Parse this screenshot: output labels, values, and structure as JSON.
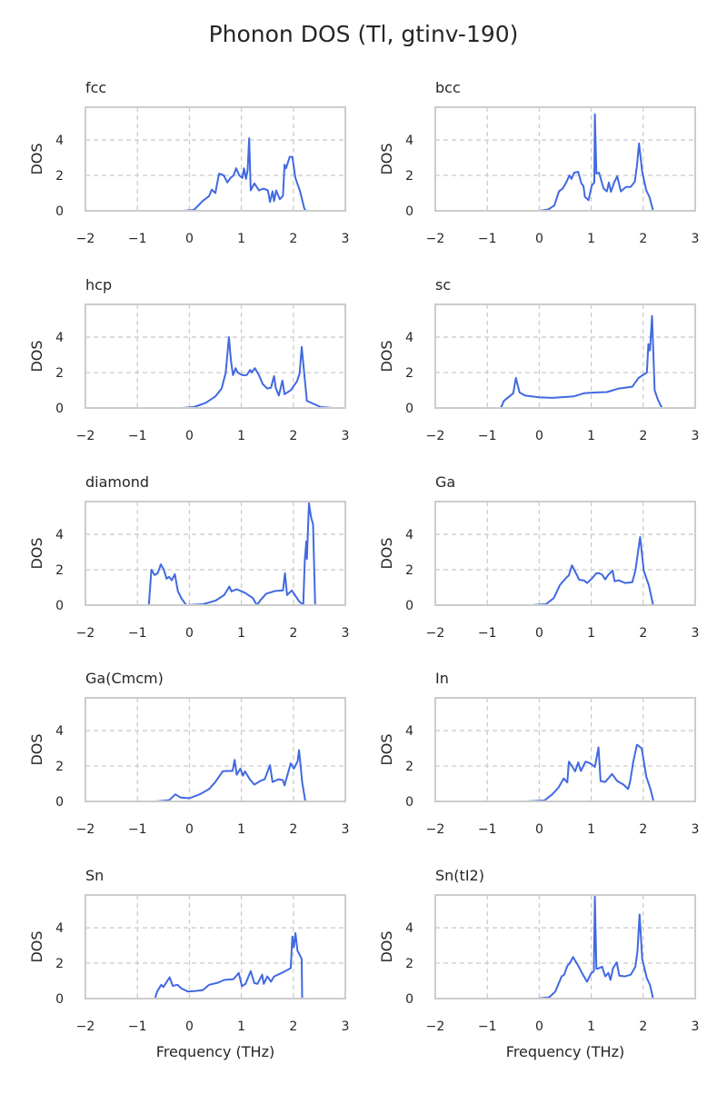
{
  "title": "Phonon DOS (Tl, gtinv-190)",
  "chart_data": {
    "type": "line",
    "title": "Phonon DOS (Tl, gtinv-190)",
    "xlabel": "Frequency (THz)",
    "ylabel": "DOS",
    "xlim": [
      -2,
      3
    ],
    "ylim": [
      0,
      5.85
    ],
    "xticks": [
      -2,
      -1,
      0,
      1,
      2,
      3
    ],
    "xtick_labels": [
      "−2",
      "−1",
      "0",
      "1",
      "2",
      "3"
    ],
    "yticks": [
      0,
      2,
      4
    ],
    "ytick_labels": [
      "0",
      "2",
      "4"
    ],
    "grid": true,
    "grid_style": "dashed",
    "line_color": "#4169e1",
    "grid_color": "#cccccc",
    "panels": [
      {
        "title": "fcc",
        "x": [
          -0.12,
          0.09,
          0.26,
          0.38,
          0.43,
          0.5,
          0.57,
          0.66,
          0.73,
          0.79,
          0.85,
          0.9,
          0.96,
          1.02,
          1.05,
          1.09,
          1.12,
          1.15,
          1.18,
          1.25,
          1.34,
          1.43,
          1.51,
          1.55,
          1.6,
          1.63,
          1.67,
          1.74,
          1.8,
          1.83,
          1.86,
          1.93,
          1.98,
          2.04,
          2.13,
          2.21,
          2.24,
          2.42
        ],
        "y": [
          0,
          0.05,
          0.57,
          0.83,
          1.2,
          1.0,
          2.1,
          2.0,
          1.6,
          1.85,
          2.0,
          2.4,
          2.0,
          1.85,
          2.4,
          1.8,
          2.3,
          4.1,
          1.15,
          1.55,
          1.15,
          1.25,
          1.15,
          0.5,
          1.1,
          0.55,
          1.15,
          0.65,
          0.85,
          2.6,
          2.4,
          3.05,
          3.05,
          1.85,
          1.1,
          0.15,
          0,
          0
        ]
      },
      {
        "title": "bcc",
        "x": [
          0,
          0.17,
          0.29,
          0.38,
          0.45,
          0.52,
          0.58,
          0.62,
          0.67,
          0.75,
          0.81,
          0.85,
          0.88,
          0.95,
          1.01,
          1.06,
          1.07,
          1.1,
          1.15,
          1.24,
          1.3,
          1.34,
          1.38,
          1.44,
          1.5,
          1.57,
          1.67,
          1.76,
          1.84,
          1.88,
          1.92,
          1.98,
          2.06,
          2.12,
          2.19,
          2.37
        ],
        "y": [
          0,
          0.07,
          0.3,
          1.1,
          1.25,
          1.6,
          2.0,
          1.8,
          2.15,
          2.2,
          1.55,
          1.4,
          0.78,
          0.6,
          1.43,
          1.6,
          5.45,
          2.1,
          2.15,
          1.25,
          1.1,
          1.6,
          1.07,
          1.6,
          1.95,
          1.1,
          1.35,
          1.35,
          1.65,
          2.55,
          3.8,
          2.2,
          1.15,
          0.78,
          0,
          0
        ]
      },
      {
        "title": "hcp",
        "x": [
          -0.15,
          0.09,
          0.32,
          0.5,
          0.62,
          0.7,
          0.76,
          0.8,
          0.84,
          0.89,
          0.93,
          1.02,
          1.1,
          1.17,
          1.2,
          1.26,
          1.34,
          1.41,
          1.5,
          1.57,
          1.63,
          1.66,
          1.72,
          1.79,
          1.83,
          1.95,
          2.07,
          2.12,
          2.16,
          2.26,
          2.53,
          2.77
        ],
        "y": [
          0,
          0.05,
          0.3,
          0.65,
          1.1,
          2.0,
          4.0,
          2.65,
          1.85,
          2.25,
          2.0,
          1.85,
          1.85,
          2.15,
          2.0,
          2.25,
          1.85,
          1.35,
          1.1,
          1.15,
          1.8,
          1.15,
          0.7,
          1.55,
          0.78,
          1.0,
          1.5,
          1.95,
          3.45,
          0.4,
          0.05,
          0
        ]
      },
      {
        "title": "sc",
        "x": [
          -1.03,
          -0.74,
          -0.68,
          -0.5,
          -0.45,
          -0.38,
          -0.27,
          0,
          0.25,
          0.66,
          0.86,
          1.1,
          1.3,
          1.53,
          1.79,
          1.91,
          2.07,
          2.1,
          2.13,
          2.17,
          2.22,
          2.28,
          2.36,
          2.64
        ],
        "y": [
          0,
          0,
          0.4,
          0.83,
          1.7,
          0.88,
          0.7,
          0.6,
          0.57,
          0.65,
          0.83,
          0.88,
          0.9,
          1.1,
          1.2,
          1.7,
          2.0,
          3.6,
          3.25,
          5.2,
          1.0,
          0.48,
          0,
          0
        ]
      },
      {
        "title": "diamond",
        "x": [
          -1.09,
          -0.78,
          -0.73,
          -0.67,
          -0.61,
          -0.55,
          -0.49,
          -0.44,
          -0.39,
          -0.34,
          -0.28,
          -0.22,
          -0.15,
          -0.06,
          0.26,
          0.5,
          0.67,
          0.77,
          0.81,
          0.91,
          1.07,
          1.22,
          1.3,
          1.37,
          1.48,
          1.65,
          1.8,
          1.84,
          1.88,
          1.97,
          2.11,
          2.19,
          2.22,
          2.25,
          2.26,
          2.3,
          2.34,
          2.38,
          2.42,
          2.77
        ],
        "y": [
          0,
          0,
          2.0,
          1.7,
          1.8,
          2.3,
          2.0,
          1.5,
          1.6,
          1.4,
          1.75,
          0.78,
          0.37,
          0,
          0.05,
          0.25,
          0.57,
          1.05,
          0.78,
          0.9,
          0.7,
          0.4,
          0,
          0.3,
          0.65,
          0.8,
          0.83,
          1.8,
          0.57,
          0.83,
          0.22,
          0,
          2.55,
          3.6,
          2.6,
          5.75,
          5.0,
          4.55,
          0,
          0
        ]
      },
      {
        "title": "Ga",
        "x": [
          -0.15,
          0.13,
          0.28,
          0.4,
          0.52,
          0.57,
          0.63,
          0.72,
          0.77,
          0.86,
          0.92,
          1.01,
          1.1,
          1.15,
          1.21,
          1.27,
          1.33,
          1.41,
          1.45,
          1.53,
          1.65,
          1.79,
          1.85,
          1.94,
          2.01,
          2.11,
          2.19,
          2.4
        ],
        "y": [
          0,
          0.05,
          0.4,
          1.15,
          1.55,
          1.68,
          2.25,
          1.72,
          1.43,
          1.4,
          1.25,
          1.5,
          1.8,
          1.8,
          1.72,
          1.45,
          1.72,
          1.95,
          1.35,
          1.4,
          1.25,
          1.3,
          1.95,
          3.85,
          1.95,
          1.1,
          0,
          0
        ]
      },
      {
        "title": "Ga(Cmcm)",
        "x": [
          -0.64,
          -0.39,
          -0.27,
          -0.17,
          0,
          0.2,
          0.38,
          0.5,
          0.64,
          0.72,
          0.83,
          0.87,
          0.91,
          0.98,
          1.03,
          1.07,
          1.16,
          1.25,
          1.36,
          1.45,
          1.55,
          1.6,
          1.72,
          1.8,
          1.83,
          1.95,
          2.01,
          2.08,
          2.11,
          2.17,
          2.23,
          2.5
        ],
        "y": [
          0,
          0.07,
          0.4,
          0.22,
          0.18,
          0.4,
          0.7,
          1.1,
          1.7,
          1.72,
          1.72,
          2.35,
          1.5,
          1.85,
          1.45,
          1.7,
          1.25,
          0.95,
          1.15,
          1.25,
          2.05,
          1.1,
          1.25,
          1.2,
          0.9,
          2.15,
          1.85,
          2.25,
          2.9,
          1.1,
          0,
          0
        ]
      },
      {
        "title": "In",
        "x": [
          -0.27,
          0.1,
          0.25,
          0.37,
          0.47,
          0.54,
          0.57,
          0.63,
          0.69,
          0.75,
          0.8,
          0.89,
          0.98,
          1.07,
          1.14,
          1.18,
          1.27,
          1.4,
          1.5,
          1.62,
          1.71,
          1.75,
          1.81,
          1.88,
          1.97,
          2.06,
          2.14,
          2.2,
          2.44
        ],
        "y": [
          0,
          0.05,
          0.4,
          0.78,
          1.3,
          1.07,
          2.25,
          2.0,
          1.7,
          2.2,
          1.72,
          2.25,
          2.15,
          1.95,
          3.05,
          1.15,
          1.1,
          1.55,
          1.15,
          0.95,
          0.7,
          1.15,
          2.25,
          3.2,
          3.0,
          1.4,
          0.7,
          0,
          0
        ]
      },
      {
        "title": "Sn",
        "x": [
          -0.93,
          -0.66,
          -0.62,
          -0.54,
          -0.5,
          -0.38,
          -0.32,
          -0.23,
          -0.15,
          -0.03,
          0.12,
          0.26,
          0.38,
          0.55,
          0.67,
          0.85,
          0.95,
          1.01,
          1.08,
          1.18,
          1.25,
          1.31,
          1.4,
          1.43,
          1.5,
          1.57,
          1.63,
          1.78,
          1.95,
          1.98,
          2.01,
          2.04,
          2.08,
          2.16,
          2.17,
          2.45
        ],
        "y": [
          0,
          0,
          0.4,
          0.78,
          0.65,
          1.2,
          0.72,
          0.78,
          0.57,
          0.4,
          0.43,
          0.48,
          0.78,
          0.9,
          1.05,
          1.1,
          1.45,
          0.7,
          0.83,
          1.55,
          0.88,
          0.83,
          1.35,
          0.83,
          1.25,
          0.95,
          1.25,
          1.45,
          1.72,
          3.5,
          2.9,
          3.7,
          2.7,
          2.25,
          0,
          0
        ]
      },
      {
        "title": "Sn(tI2)",
        "x": [
          -0.04,
          0.19,
          0.31,
          0.43,
          0.48,
          0.54,
          0.59,
          0.65,
          0.75,
          0.83,
          0.92,
          1.0,
          1.05,
          1.07,
          1.1,
          1.15,
          1.21,
          1.27,
          1.33,
          1.37,
          1.42,
          1.49,
          1.54,
          1.65,
          1.76,
          1.85,
          1.89,
          1.93,
          1.98,
          2.07,
          2.13,
          2.19,
          2.38
        ],
        "y": [
          0,
          0.07,
          0.4,
          1.25,
          1.35,
          1.85,
          2.0,
          2.35,
          1.85,
          1.4,
          0.95,
          1.43,
          1.55,
          5.75,
          1.68,
          1.72,
          1.8,
          1.25,
          1.45,
          1.05,
          1.72,
          2.05,
          1.3,
          1.25,
          1.35,
          1.8,
          2.7,
          4.75,
          2.25,
          1.15,
          0.78,
          0,
          0
        ]
      }
    ]
  }
}
